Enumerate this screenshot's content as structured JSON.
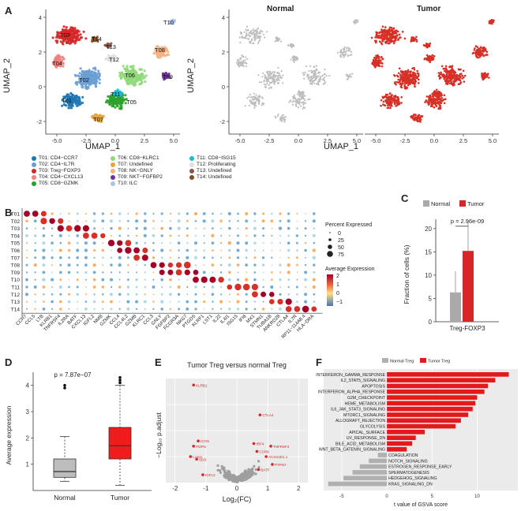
{
  "panel_labels": {
    "A": "A",
    "B": "B",
    "C": "C",
    "D": "D",
    "E": "E",
    "F": "F"
  },
  "umap": {
    "xlabel": "UMAP_1",
    "ylabel": "UMAP_2",
    "xticks": [
      "-5.0",
      "-2.5",
      "0.0",
      "2.5",
      "5.0"
    ],
    "yticks": [
      "4",
      "2",
      "0",
      "-2"
    ],
    "title_normal": "Normal",
    "title_tumor": "Tumor",
    "cluster_labels": [
      "T01",
      "T02",
      "T03",
      "T04",
      "T05",
      "T06",
      "T07",
      "T08",
      "T09",
      "T10",
      "T11",
      "T12",
      "T13",
      "T14"
    ],
    "colors": {
      "normal": "#bdbdbd",
      "tumor": "#d73027"
    }
  },
  "clusters": [
    {
      "label": "T01: CD4−CCR7",
      "color": "#1f77b4"
    },
    {
      "label": "T02: CD4−IL7R",
      "color": "#6a9fd4"
    },
    {
      "label": "T03: Treg−FOXP3",
      "color": "#d62728"
    },
    {
      "label": "T04: CD4−CXCL13",
      "color": "#f08080"
    },
    {
      "label": "T05: CD8−GZMK",
      "color": "#2ca02c"
    },
    {
      "label": "T06: CD8−KLRC1",
      "color": "#90d97a"
    },
    {
      "label": "T07: Undefined",
      "color": "#e8a33c"
    },
    {
      "label": "T08: NK−GNLY",
      "color": "#f4b183"
    },
    {
      "label": "T09: NKT−FGFBP2",
      "color": "#7030a0"
    },
    {
      "label": "T10: ILC",
      "color": "#a9c4e8"
    },
    {
      "label": "T11: CD8−ISG15",
      "color": "#17becf"
    },
    {
      "label": "T12: Proliferating",
      "color": "#e0e0e0"
    },
    {
      "label": "T13: Undefined",
      "color": "#8c564b"
    },
    {
      "label": "T14: Undefined",
      "color": "#7f4f24"
    }
  ],
  "dotplot": {
    "rows": [
      "T01",
      "T02",
      "T03",
      "T04",
      "T05",
      "T06",
      "T07",
      "T08",
      "T09",
      "T10",
      "T11",
      "T12",
      "T13",
      "T14"
    ],
    "genes": [
      "CCR7",
      "CCL5",
      "LTB",
      "KLRB1",
      "TNFRSF4",
      "IL2RA",
      "BATF",
      "CXCL13",
      "IGFL2",
      "NMB",
      "GZMK",
      "CCL4",
      "CCL4L2",
      "GZMB",
      "KLRC1",
      "CCL3",
      "GNLY",
      "FGFBP2",
      "FCGR3A",
      "NKG7",
      "PTGDS",
      "KLRF1",
      "LST1",
      "IL22",
      "IL4I1",
      "ISG15",
      "IFI6",
      "MX1",
      "STMN1",
      "TUBA1B",
      "ANKRD28",
      "CTLA4",
      "IL7R",
      "RP11−114A8.4",
      "HLA−DRA"
    ],
    "size_title": "Percent Expressed",
    "size_ticks": [
      "0",
      "25",
      "50",
      "75"
    ],
    "color_title": "Average Expression",
    "color_ticks": [
      "2",
      "1",
      "0",
      "−1"
    ]
  },
  "chart_data": [
    {
      "type": "bar",
      "panel": "C",
      "categories": [
        "Treg-FOXP3"
      ],
      "series": [
        {
          "name": "Normal",
          "values": [
            6.3
          ],
          "color": "#aaaaaa"
        },
        {
          "name": "Tumor",
          "values": [
            15.2
          ],
          "color": "#d62728"
        }
      ],
      "ylabel": "Fraction of cells (%)",
      "ylim": [
        0,
        22
      ],
      "yticks": [
        "0",
        "5",
        "10",
        "15",
        "20"
      ],
      "annotation": "p = 2.96e-09"
    },
    {
      "type": "box",
      "panel": "D",
      "categories": [
        "Normal",
        "Tumor"
      ],
      "series": [
        {
          "name": "Normal",
          "min": 0.35,
          "q1": 0.5,
          "median": 0.72,
          "q3": 1.2,
          "max": 2.05,
          "outliers": [
            3.9,
            4.0
          ],
          "color": "#bdbdbd"
        },
        {
          "name": "Tumor",
          "min": 0.2,
          "q1": 1.2,
          "median": 1.7,
          "q3": 2.4,
          "max": 4.0,
          "outliers": [
            4.1,
            4.2,
            4.3
          ],
          "color": "#ee1c1c"
        }
      ],
      "ylabel": "Average expression",
      "ylim": [
        0,
        4.5
      ],
      "yticks": [
        "1",
        "2",
        "3",
        "4"
      ],
      "annotation": "p = 7.87e−07"
    },
    {
      "type": "scatter",
      "panel": "E",
      "title": "Tumor Treg versus normal Treg",
      "xlabel": "Log₂(FC)",
      "ylabel": "−Log₁₀ p.adjust",
      "xticks": [
        "-2",
        "-1",
        "0",
        "1",
        "2"
      ],
      "xlim": [
        -2.3,
        2.3
      ],
      "ylim": [
        0,
        80
      ],
      "highlighted": [
        {
          "label": "KLRB1",
          "x": -1.4,
          "y": 75
        },
        {
          "label": "CTLA4",
          "x": 0.75,
          "y": 52
        },
        {
          "label": "ICOS",
          "x": -1.25,
          "y": 32
        },
        {
          "label": "PDPN",
          "x": -1.4,
          "y": 28
        },
        {
          "label": "IRF4",
          "x": 0.55,
          "y": 30
        },
        {
          "label": "TNFRSF4",
          "x": 1.1,
          "y": 28
        },
        {
          "label": "CCR8",
          "x": 0.65,
          "y": 24
        },
        {
          "label": "ACSS2D1.1",
          "x": 0.95,
          "y": 20
        },
        {
          "label": "LAG3",
          "x": -1.5,
          "y": 20
        },
        {
          "label": "SDS",
          "x": -1.3,
          "y": 18
        },
        {
          "label": "PTPN7",
          "x": 1.15,
          "y": 14
        },
        {
          "label": "BATF",
          "x": 0.7,
          "y": 10
        },
        {
          "label": "IGFL2",
          "x": -1.1,
          "y": 6
        }
      ]
    },
    {
      "type": "bar",
      "panel": "F",
      "orientation": "horizontal",
      "legend": [
        "Normal Treg",
        "Tumor Treg"
      ],
      "xlabel": "t value of GSVA score",
      "xticks": [
        "-5",
        "0",
        "5",
        "10"
      ],
      "xlim": [
        -7,
        14.5
      ],
      "categories": [
        "INTERFERON_GAMMA_RESPONSE",
        "IL2_STAT5_SIGNALING",
        "APOPTOSIS",
        "INTERFERON_ALPHA_RESPONSE",
        "G2M_CHECKPOINT",
        "HEME_METABOLISM",
        "IL6_JAK_STAT3_SIGNALING",
        "MTORC1_SIGNALING",
        "ALLOGRAFT_REJECTION",
        "GLYCOLYSIS",
        "APICAL_SURFACE",
        "UV_RESPONSE_DN",
        "BILE_ACID_METABOLISM",
        "WNT_BETA_CATENIN_SIGNALING",
        "COAGULATION",
        "NOTCH_SIGNALING",
        "ESTROGEN_RESPONSE_EARLY",
        "SPERMATOGENESIS",
        "HEDGEHOG_SIGNALING",
        "KRAS_SIGNALING_DN"
      ],
      "values": [
        13.5,
        12.0,
        11.2,
        10.8,
        10.0,
        9.8,
        9.5,
        9.0,
        8.2,
        7.6,
        4.2,
        3.2,
        2.8,
        2.2,
        -1.0,
        -2.0,
        -3.0,
        -3.8,
        -4.8,
        -6.5
      ]
    }
  ],
  "legendC": {
    "normal": "Normal",
    "tumor": "Tumor"
  }
}
